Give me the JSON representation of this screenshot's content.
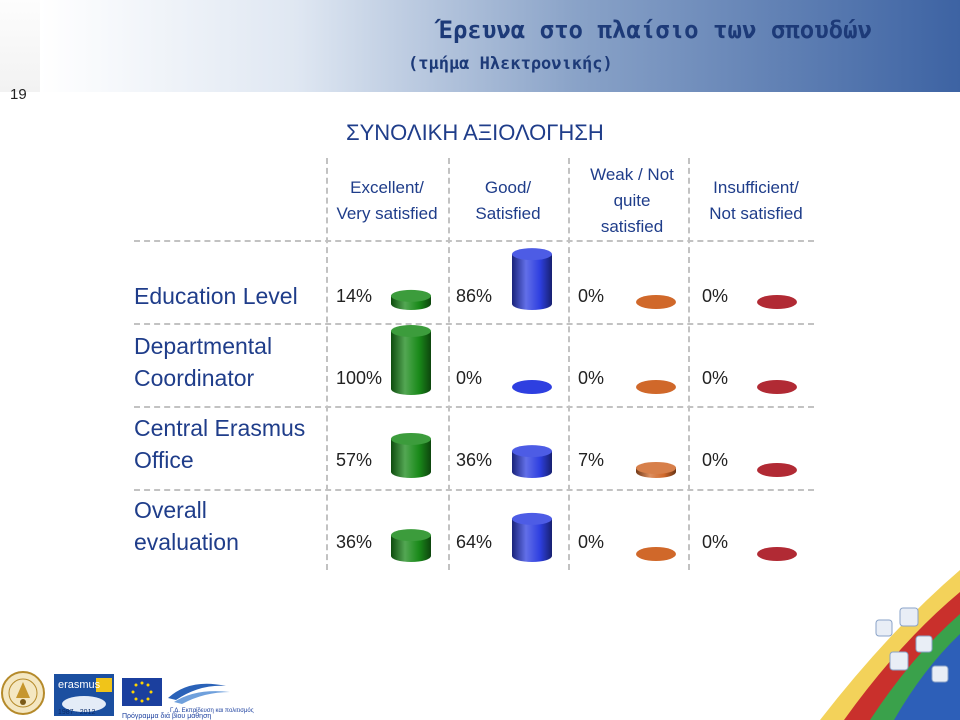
{
  "header": {
    "title": "Έρευνα στο πλαίσιο των σπουδών",
    "subtitle": "(τμήμα Ηλεκτρονικής)",
    "slide_number": "19"
  },
  "chart_data": {
    "type": "table",
    "title": "ΣΥΝΟΛΙΚΗ ΑΞΙΟΛΟΓΗΣΗ",
    "columns": [
      {
        "line1": "Excellent/",
        "line2": "Very satisfied",
        "line3": "",
        "color": "#1a8a1a"
      },
      {
        "line1": "Good/",
        "line2": "Satisfied",
        "line3": "",
        "color": "#2e3fe0"
      },
      {
        "line1": "Weak / Not",
        "line2": "quite",
        "line3": "satisfied",
        "color": "#d0682a"
      },
      {
        "line1": "Insufficient/",
        "line2": "Not satisfied",
        "line3": "",
        "color": "#b12a34"
      }
    ],
    "rows": [
      {
        "line1": "Education Level",
        "line2": "",
        "values": [
          14,
          86,
          0,
          0
        ],
        "labels": [
          "14%",
          "86%",
          "0%",
          "0%"
        ]
      },
      {
        "line1": "Departmental",
        "line2": "Coordinator",
        "values": [
          100,
          0,
          0,
          0
        ],
        "labels": [
          "100%",
          "0%",
          "0%",
          "0%"
        ]
      },
      {
        "line1": "Central Erasmus",
        "line2": "Office",
        "values": [
          57,
          36,
          7,
          0
        ],
        "labels": [
          "57%",
          "36%",
          "7%",
          "0%"
        ]
      },
      {
        "line1": "Overall",
        "line2": "evaluation",
        "values": [
          36,
          64,
          0,
          0
        ],
        "labels": [
          "36%",
          "64%",
          "0%",
          "0%"
        ]
      }
    ]
  },
  "footer": {
    "erasmus_logo_text": "erasmus",
    "erasmus_years": "1987 · 2012",
    "eu_caption": "Γ.Δ. Εκπαίδευση και πολιτισμός",
    "llp_caption": "Πρόγραμμα διά βίου μάθηση"
  }
}
